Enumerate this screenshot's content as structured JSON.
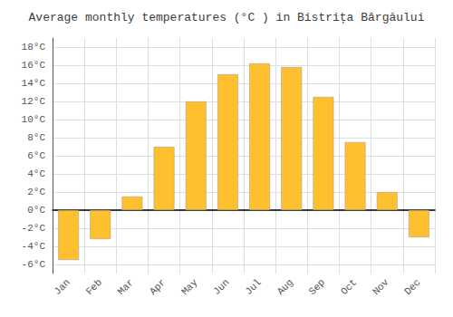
{
  "chart_data": {
    "type": "bar",
    "title": "Average monthly temperatures (°C ) in Bistrița Bârgăului",
    "categories": [
      "Jan",
      "Feb",
      "Mar",
      "Apr",
      "May",
      "Jun",
      "Jul",
      "Aug",
      "Sep",
      "Oct",
      "Nov",
      "Dec"
    ],
    "values": [
      -5.5,
      -3.2,
      1.5,
      7.0,
      12.0,
      15.0,
      16.2,
      15.8,
      12.5,
      7.5,
      2.0,
      -3.0
    ],
    "color": "#FFC030",
    "ylim": [
      -7,
      19
    ],
    "yticks": [
      {
        "value": -6,
        "label": "-6°C"
      },
      {
        "value": -4,
        "label": "-4°C"
      },
      {
        "value": -2,
        "label": "-2°C"
      },
      {
        "value": 0,
        "label": "0°C"
      },
      {
        "value": 2,
        "label": "2°C"
      },
      {
        "value": 4,
        "label": "4°C"
      },
      {
        "value": 6,
        "label": "6°C"
      },
      {
        "value": 8,
        "label": "8°C"
      },
      {
        "value": 10,
        "label": "10°C"
      },
      {
        "value": 12,
        "label": "12°C"
      },
      {
        "value": 14,
        "label": "14°C"
      },
      {
        "value": 16,
        "label": "16°C"
      },
      {
        "value": 18,
        "label": "18°C"
      }
    ],
    "grid": true
  }
}
